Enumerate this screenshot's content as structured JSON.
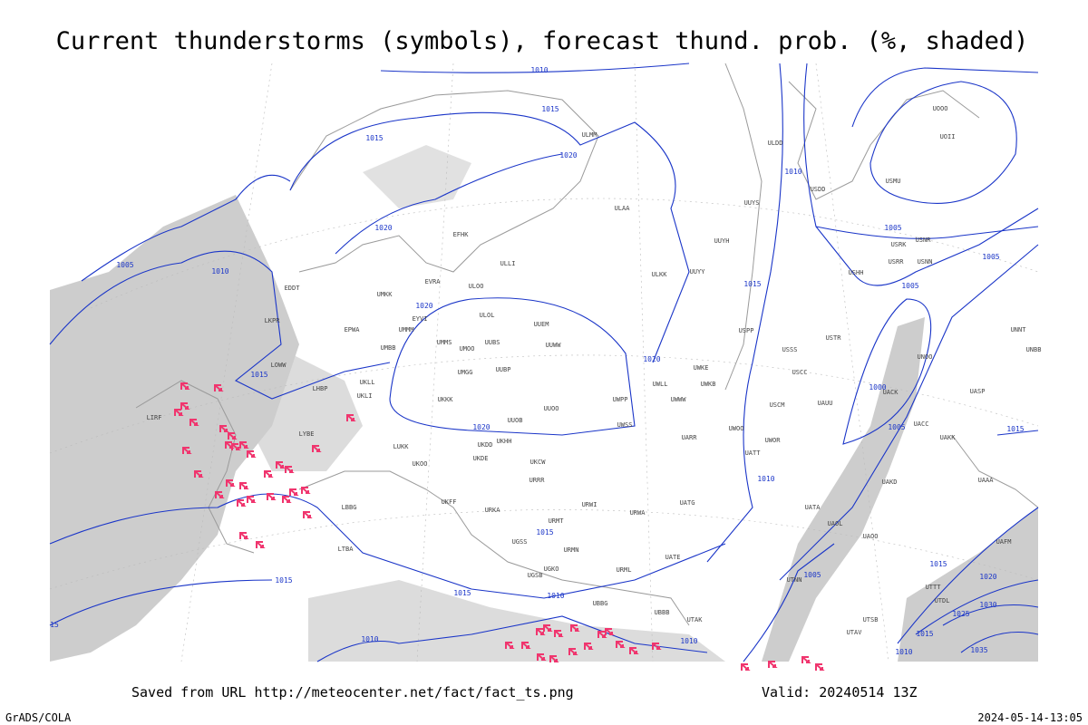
{
  "header": {
    "title": "Current thunderstorms (symbols), forecast thund. prob. (%, shaded)"
  },
  "footer": {
    "source": "Saved from URL http://meteocenter.net/fact/fact_ts.png",
    "valid": "Valid: 20240514 13Z",
    "software": "GrADS/COLA",
    "timestamp": "2024-05-14-13:05"
  },
  "isobar_labels": [
    "1010",
    "1015",
    "1015",
    "1020",
    "1020",
    "1010",
    "1005",
    "1020",
    "1015",
    "1020",
    "1020",
    "1010",
    "1015",
    "1005",
    "1005",
    "1005",
    "1000",
    "1005",
    "1015",
    "1010",
    "1015",
    "1015",
    "1015",
    "1010",
    "1005",
    "1010",
    "1010",
    "1015",
    "1020",
    "1030",
    "1025",
    "1035",
    "1015",
    "1010",
    "15"
  ],
  "stations": [
    "ULMM",
    "ULAA",
    "EFHK",
    "ULLI",
    "ULOO",
    "EVRA",
    "UMKK",
    "EYVI",
    "ULOL",
    "UUEM",
    "UMMS",
    "UMOO",
    "UUBS",
    "UUWW",
    "UMGG",
    "UUBP",
    "UKKK",
    "UUOO",
    "UUOB",
    "UKHH",
    "UKDD",
    "UKDE",
    "UKOO",
    "UKFF",
    "URKA",
    "URRR",
    "UKCW",
    "URWI",
    "URMT",
    "URMN",
    "UGSS",
    "UGKO",
    "UGSB",
    "UBBB",
    "UBBG",
    "URML",
    "URWA",
    "UATG",
    "UATE",
    "UATT",
    "UWOO",
    "UWOR",
    "UARR",
    "UWKE",
    "UWKB",
    "UWLL",
    "UWWW",
    "UWPP",
    "UWSS",
    "UAUU",
    "USCM",
    "USCC",
    "USSS",
    "USTR",
    "USPP",
    "UUYY",
    "ULKK",
    "UUYH",
    "UUYS",
    "ULDD",
    "USDD",
    "USMU",
    "UOOO",
    "UOII",
    "USRR",
    "USNN",
    "USRK",
    "USNR",
    "USHH",
    "UNNT",
    "UNBB",
    "UNOO",
    "UACK",
    "UACC",
    "UAKK",
    "UASP",
    "UAAA",
    "UAKD",
    "UATA",
    "UAOL",
    "UAOO",
    "UAFM",
    "UTNN",
    "UTAV",
    "UTSB",
    "UTAK",
    "UTTT",
    "UTDL",
    "EPWA",
    "UMBB",
    "UKLL",
    "UKLI",
    "LHBP",
    "LOWW",
    "EDDT",
    "LKPR",
    "LIRF",
    "LYBE",
    "LUKK",
    "LBBG",
    "LTBA",
    "UMMM"
  ]
}
